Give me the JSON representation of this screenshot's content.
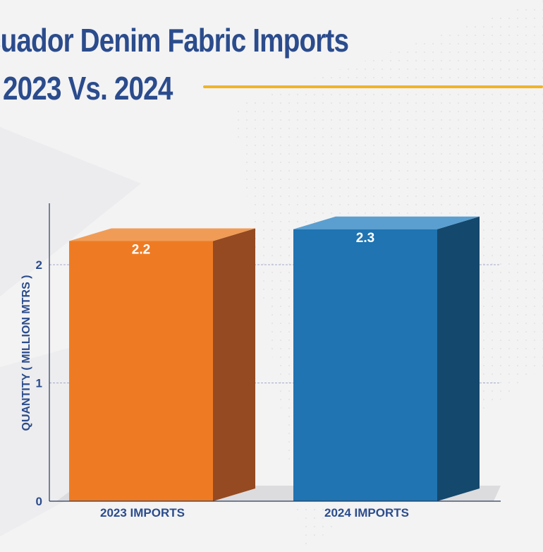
{
  "title": {
    "line1": "cuador Denim Fabric Imports",
    "line2": "2023  Vs.  2024"
  },
  "colors": {
    "title": "#2b4c8c",
    "accent_rule": "#f0b429",
    "bar_2023_front": "#ee7b23",
    "bar_2023_side": "#954a21",
    "bar_2023_top": "#f09c56",
    "bar_2024_front": "#1f74b1",
    "bar_2024_side": "#14486d",
    "bar_2024_top": "#5a9fd0"
  },
  "chart_data": {
    "type": "bar",
    "categories": [
      "2023 IMPORTS",
      "2024 IMPORTS"
    ],
    "values": [
      2.2,
      2.3
    ],
    "value_labels": [
      "2.2",
      "2.3"
    ],
    "ylabel": "QUANTITY ( MILLION MTRS )",
    "xlabel": "",
    "ylim": [
      0,
      2.5
    ],
    "yticks": [
      0,
      1,
      2
    ],
    "grid": true,
    "style": "3d-bars"
  }
}
